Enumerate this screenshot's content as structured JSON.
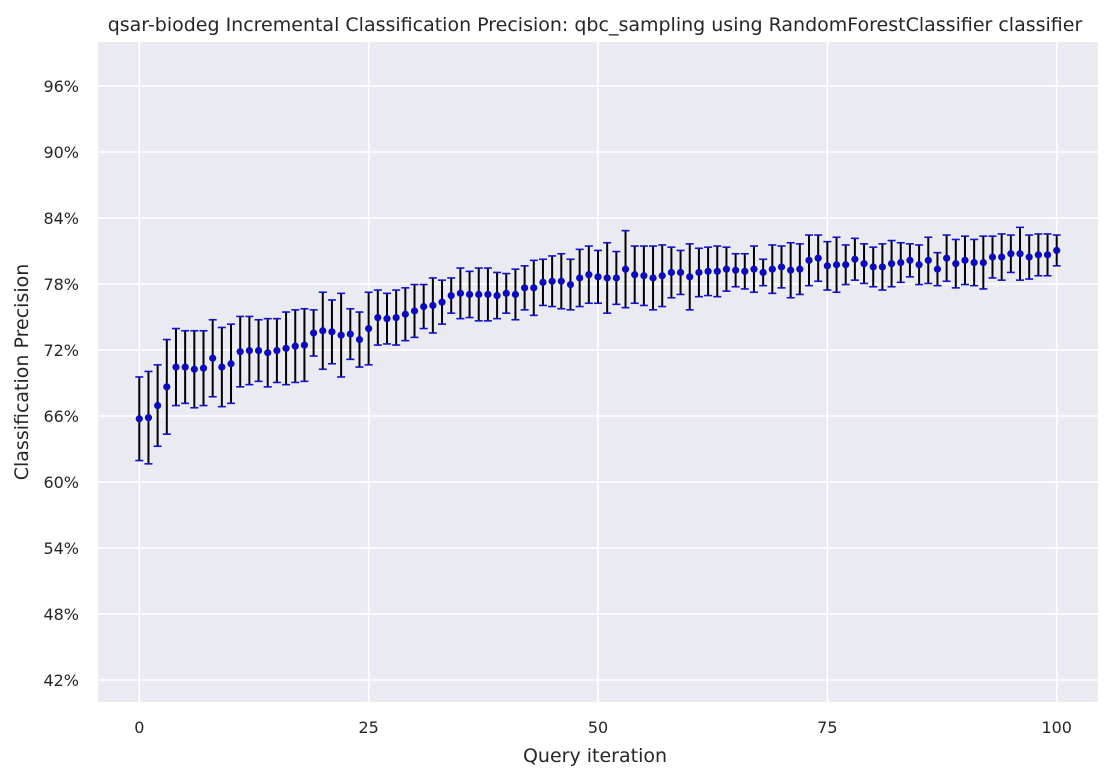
{
  "chart_data": {
    "type": "scatter",
    "title": "qsar-biodeg Incremental Classification Precision: qbc_sampling using RandomForestClassifier classifier",
    "xlabel": "Query iteration",
    "ylabel": "Classification Precision",
    "xlim": [
      -4.5,
      104.5
    ],
    "ylim": [
      0.4,
      1.0
    ],
    "xticks": [
      0,
      25,
      50,
      75,
      100
    ],
    "xtick_labels": [
      "0",
      "25",
      "50",
      "75",
      "100"
    ],
    "yticks": [
      0.42,
      0.48,
      0.54,
      0.6,
      0.66,
      0.72,
      0.78,
      0.84,
      0.9,
      0.96
    ],
    "ytick_labels": [
      "42%",
      "48%",
      "54%",
      "60%",
      "66%",
      "72%",
      "78%",
      "84%",
      "90%",
      "96%"
    ],
    "grid": true,
    "colors": {
      "background": "#eaeaf2",
      "grid": "#ffffff",
      "marker": "#0d0ab8",
      "errorbar": "#000000",
      "cap": "#1212c8"
    },
    "series": [
      {
        "x": [
          0,
          1,
          2,
          3,
          4,
          5,
          6,
          7,
          8,
          9,
          10,
          11,
          12,
          13,
          14,
          15,
          16,
          17,
          18,
          19,
          20,
          21,
          22,
          23,
          24,
          25,
          26,
          27,
          28,
          29,
          30,
          31,
          32,
          33,
          34,
          35,
          36,
          37,
          38,
          39,
          40,
          41,
          42,
          43,
          44,
          45,
          46,
          47,
          48,
          49,
          50,
          51,
          52,
          53,
          54,
          55,
          56,
          57,
          58,
          59,
          60,
          61,
          62,
          63,
          64,
          65,
          66,
          67,
          68,
          69,
          70,
          71,
          72,
          73,
          74,
          75,
          76,
          77,
          78,
          79,
          80,
          81,
          82,
          83,
          84,
          85,
          86,
          87,
          88,
          89,
          90,
          91,
          92,
          93,
          94,
          95,
          96,
          97,
          98,
          99,
          100
        ],
        "y": [
          0.6575,
          0.6585,
          0.6695,
          0.6865,
          0.7045,
          0.7045,
          0.7025,
          0.7035,
          0.7125,
          0.7045,
          0.7075,
          0.7185,
          0.7195,
          0.7195,
          0.7175,
          0.7195,
          0.7215,
          0.7235,
          0.7245,
          0.7355,
          0.7375,
          0.7365,
          0.7335,
          0.7345,
          0.7295,
          0.7395,
          0.7495,
          0.7485,
          0.7495,
          0.7525,
          0.7555,
          0.7595,
          0.7605,
          0.7635,
          0.7695,
          0.7715,
          0.7705,
          0.7705,
          0.7705,
          0.7695,
          0.7715,
          0.7705,
          0.7765,
          0.7765,
          0.7815,
          0.7825,
          0.7825,
          0.7795,
          0.7855,
          0.7885,
          0.7865,
          0.7855,
          0.7855,
          0.7935,
          0.7885,
          0.7875,
          0.7855,
          0.7875,
          0.7905,
          0.7905,
          0.7865,
          0.7905,
          0.7915,
          0.7915,
          0.7935,
          0.7925,
          0.7915,
          0.7935,
          0.7905,
          0.7935,
          0.7955,
          0.7925,
          0.7935,
          0.8015,
          0.8035,
          0.7965,
          0.7975,
          0.7975,
          0.8025,
          0.7985,
          0.7955,
          0.7955,
          0.7985,
          0.7995,
          0.8015,
          0.7975,
          0.8015,
          0.7935,
          0.8035,
          0.7985,
          0.8015,
          0.7995,
          0.7995,
          0.8045,
          0.8045,
          0.8075,
          0.8075,
          0.8045,
          0.8065,
          0.8065,
          0.8105
        ],
        "err": [
          0.038,
          0.042,
          0.037,
          0.043,
          0.035,
          0.033,
          0.035,
          0.034,
          0.035,
          0.036,
          0.036,
          0.032,
          0.031,
          0.028,
          0.031,
          0.029,
          0.033,
          0.033,
          0.033,
          0.021,
          0.035,
          0.029,
          0.038,
          0.023,
          0.025,
          0.033,
          0.025,
          0.023,
          0.025,
          0.024,
          0.024,
          0.02,
          0.025,
          0.02,
          0.016,
          0.023,
          0.021,
          0.024,
          0.024,
          0.021,
          0.018,
          0.023,
          0.02,
          0.025,
          0.021,
          0.023,
          0.025,
          0.023,
          0.026,
          0.026,
          0.024,
          0.032,
          0.024,
          0.035,
          0.026,
          0.027,
          0.029,
          0.028,
          0.023,
          0.02,
          0.03,
          0.022,
          0.022,
          0.023,
          0.02,
          0.015,
          0.016,
          0.021,
          0.012,
          0.022,
          0.019,
          0.025,
          0.023,
          0.023,
          0.021,
          0.022,
          0.025,
          0.018,
          0.019,
          0.018,
          0.018,
          0.021,
          0.021,
          0.018,
          0.015,
          0.018,
          0.021,
          0.015,
          0.021,
          0.022,
          0.022,
          0.021,
          0.024,
          0.019,
          0.021,
          0.017,
          0.024,
          0.02,
          0.019,
          0.019,
          0.014
        ]
      }
    ]
  }
}
